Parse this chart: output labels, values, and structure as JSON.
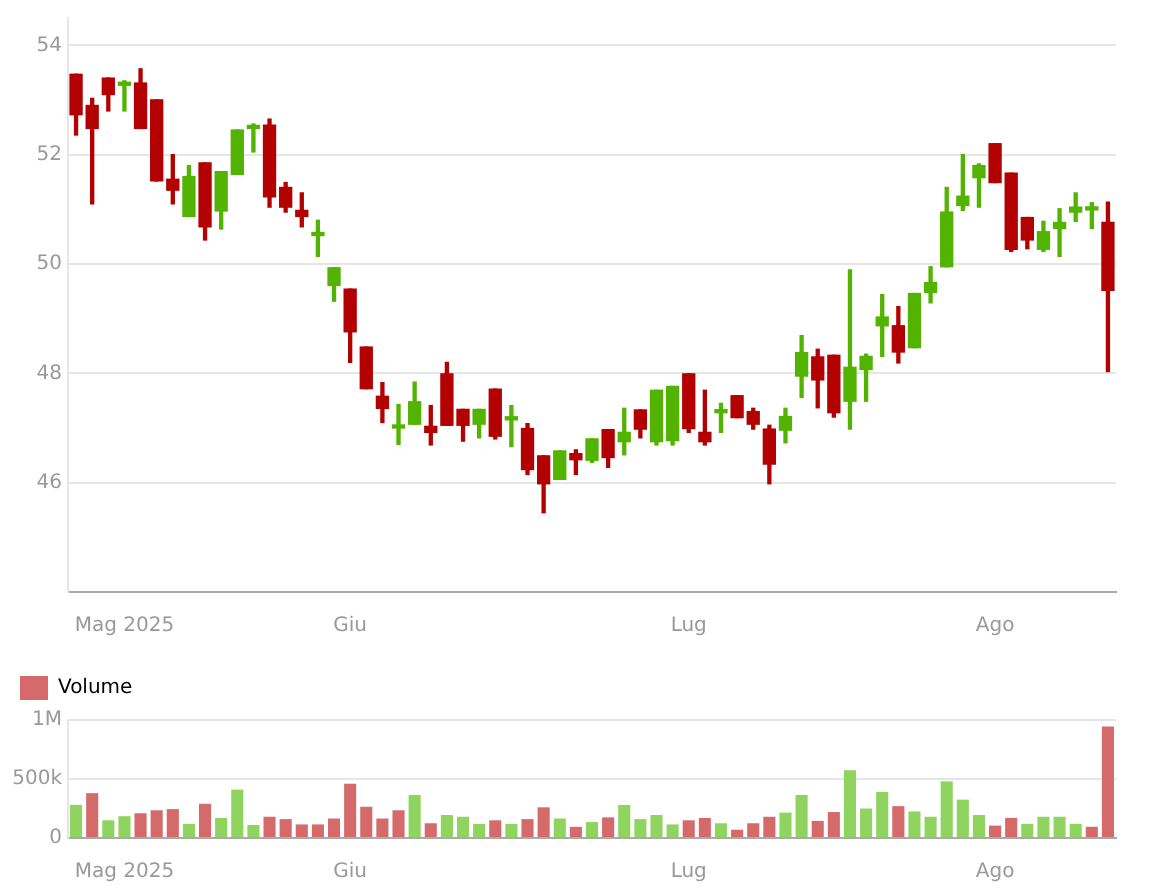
{
  "chart_data": [
    {
      "type": "candlestick",
      "categories": [
        null,
        null,
        null,
        "Mag 2025",
        null,
        null,
        null,
        null,
        null,
        null,
        null,
        null,
        null,
        null,
        null,
        null,
        null,
        "Giu",
        null,
        null,
        null,
        null,
        null,
        null,
        null,
        null,
        null,
        null,
        null,
        null,
        null,
        null,
        null,
        null,
        null,
        null,
        null,
        null,
        "Lug",
        null,
        null,
        null,
        null,
        null,
        null,
        null,
        null,
        null,
        null,
        null,
        null,
        null,
        null,
        null,
        null,
        null,
        null,
        "Ago",
        null,
        null,
        null,
        null,
        null,
        null,
        null
      ],
      "ohlc": [
        [
          53.47,
          53.47,
          52.36,
          52.73
        ],
        [
          52.9,
          53.03,
          51.1,
          52.48
        ],
        [
          53.4,
          53.4,
          52.8,
          53.1
        ],
        [
          53.27,
          53.35,
          52.8,
          53.32
        ],
        [
          53.31,
          53.57,
          52.48,
          52.48
        ],
        [
          53.0,
          53.0,
          51.52,
          51.52
        ],
        [
          51.55,
          52.0,
          51.1,
          51.35
        ],
        [
          50.87,
          51.8,
          50.87,
          51.6
        ],
        [
          51.85,
          51.85,
          50.44,
          50.68
        ],
        [
          50.97,
          51.69,
          50.64,
          51.69
        ],
        [
          51.64,
          52.45,
          51.64,
          52.45
        ],
        [
          52.48,
          52.56,
          52.05,
          52.52
        ],
        [
          52.54,
          52.65,
          51.04,
          51.23
        ],
        [
          51.4,
          51.49,
          50.95,
          51.04
        ],
        [
          50.98,
          51.3,
          50.68,
          50.87
        ],
        [
          50.52,
          50.8,
          50.14,
          50.55
        ],
        [
          49.61,
          49.93,
          49.32,
          49.93
        ],
        [
          49.54,
          49.54,
          48.2,
          48.76
        ],
        [
          48.48,
          48.48,
          47.72,
          47.72
        ],
        [
          47.58,
          47.83,
          47.1,
          47.36
        ],
        [
          47.0,
          47.43,
          46.7,
          47.02
        ],
        [
          47.07,
          47.84,
          47.07,
          47.48
        ],
        [
          47.03,
          47.41,
          46.69,
          46.92
        ],
        [
          47.99,
          48.2,
          47.05,
          47.05
        ],
        [
          47.34,
          47.34,
          46.76,
          47.05
        ],
        [
          47.07,
          47.34,
          46.82,
          47.34
        ],
        [
          47.71,
          47.71,
          46.8,
          46.85
        ],
        [
          47.15,
          47.41,
          46.66,
          47.18
        ],
        [
          46.99,
          47.08,
          46.15,
          46.24
        ],
        [
          46.49,
          46.49,
          45.45,
          45.98
        ],
        [
          46.06,
          46.58,
          46.06,
          46.58
        ],
        [
          46.53,
          46.6,
          46.15,
          46.42
        ],
        [
          46.41,
          46.8,
          46.37,
          46.8
        ],
        [
          46.97,
          46.97,
          46.28,
          46.46
        ],
        [
          46.75,
          47.36,
          46.51,
          46.92
        ],
        [
          47.33,
          47.33,
          46.82,
          46.98
        ],
        [
          46.75,
          47.69,
          46.69,
          47.69
        ],
        [
          46.77,
          47.76,
          46.69,
          47.76
        ],
        [
          47.99,
          47.99,
          46.92,
          46.99
        ],
        [
          46.92,
          47.69,
          46.69,
          46.75
        ],
        [
          47.28,
          47.45,
          46.92,
          47.31
        ],
        [
          47.59,
          47.59,
          47.19,
          47.19
        ],
        [
          47.3,
          47.36,
          46.98,
          47.07
        ],
        [
          46.98,
          47.05,
          45.98,
          46.34
        ],
        [
          46.96,
          47.36,
          46.73,
          47.21
        ],
        [
          47.95,
          48.69,
          47.56,
          48.38
        ],
        [
          48.3,
          48.44,
          47.37,
          47.88
        ],
        [
          48.33,
          48.33,
          47.2,
          47.28
        ],
        [
          47.49,
          49.89,
          46.98,
          48.11
        ],
        [
          48.07,
          48.35,
          47.49,
          48.31
        ],
        [
          48.87,
          49.44,
          48.31,
          49.03
        ],
        [
          48.87,
          49.22,
          48.19,
          48.39
        ],
        [
          48.47,
          49.46,
          48.47,
          49.46
        ],
        [
          49.48,
          49.95,
          49.29,
          49.66
        ],
        [
          49.95,
          51.4,
          49.95,
          50.95
        ],
        [
          51.07,
          52.0,
          50.98,
          51.24
        ],
        [
          51.58,
          51.83,
          51.04,
          51.8
        ],
        [
          52.2,
          52.2,
          51.49,
          51.49
        ],
        [
          51.66,
          51.66,
          50.23,
          50.27
        ],
        [
          50.85,
          50.85,
          50.28,
          50.44
        ],
        [
          50.27,
          50.78,
          50.23,
          50.59
        ],
        [
          50.65,
          51.01,
          50.14,
          50.76
        ],
        [
          50.95,
          51.3,
          50.78,
          51.04
        ],
        [
          50.99,
          51.12,
          50.65,
          51.01
        ],
        [
          50.76,
          51.13,
          48.03,
          49.52
        ]
      ],
      "colors": [
        "#b30000",
        "#b30000",
        "#b30000",
        "#52b300",
        "#b30000",
        "#b30000",
        "#b30000",
        "#52b300",
        "#b30000",
        "#52b300",
        "#52b300",
        "#52b300",
        "#b30000",
        "#b30000",
        "#b30000",
        "#52b300",
        "#52b300",
        "#b30000",
        "#b30000",
        "#b30000",
        "#52b300",
        "#52b300",
        "#b30000",
        "#b30000",
        "#b30000",
        "#52b300",
        "#b30000",
        "#52b300",
        "#b30000",
        "#b30000",
        "#52b300",
        "#b30000",
        "#52b300",
        "#b30000",
        "#52b300",
        "#b30000",
        "#52b300",
        "#52b300",
        "#b30000",
        "#b30000",
        "#52b300",
        "#b30000",
        "#b30000",
        "#b30000",
        "#52b300",
        "#52b300",
        "#b30000",
        "#b30000",
        "#52b300",
        "#52b300",
        "#52b300",
        "#b30000",
        "#52b300",
        "#52b300",
        "#52b300",
        "#52b300",
        "#52b300",
        "#b30000",
        "#b30000",
        "#b30000",
        "#52b300",
        "#52b300",
        "#52b300",
        "#52b300",
        "#b30000"
      ],
      "ylim": [
        44,
        54.5
      ],
      "yticks": [
        46,
        48,
        50,
        52,
        54
      ],
      "grid": "y"
    },
    {
      "type": "bar",
      "categories": [
        null,
        null,
        null,
        "Mag 2025",
        null,
        null,
        null,
        null,
        null,
        null,
        null,
        null,
        null,
        null,
        null,
        null,
        null,
        "Giu",
        null,
        null,
        null,
        null,
        null,
        null,
        null,
        null,
        null,
        null,
        null,
        null,
        null,
        null,
        null,
        null,
        null,
        null,
        null,
        null,
        "Lug",
        null,
        null,
        null,
        null,
        null,
        null,
        null,
        null,
        null,
        null,
        null,
        null,
        null,
        null,
        null,
        null,
        null,
        null,
        "Ago",
        null,
        null,
        null,
        null,
        null,
        null,
        null
      ],
      "series": [
        {
          "name": "Volume",
          "color": "#d46a6a",
          "values": [
            280000,
            380000,
            150000,
            185000,
            210000,
            235000,
            245000,
            120000,
            290000,
            170000,
            410000,
            110000,
            180000,
            160000,
            115000,
            115000,
            165000,
            460000,
            265000,
            165000,
            235000,
            365000,
            125000,
            195000,
            180000,
            120000,
            150000,
            120000,
            160000,
            260000,
            165000,
            95000,
            135000,
            175000,
            280000,
            160000,
            195000,
            115000,
            150000,
            170000,
            125000,
            70000,
            125000,
            180000,
            215000,
            365000,
            145000,
            220000,
            575000,
            250000,
            390000,
            270000,
            225000,
            180000,
            480000,
            325000,
            195000,
            105000,
            170000,
            120000,
            180000,
            180000,
            120000,
            95000,
            945000
          ],
          "colors": [
            "#8fd45f",
            "#d46a6a",
            "#8fd45f",
            "#8fd45f",
            "#d46a6a",
            "#d46a6a",
            "#d46a6a",
            "#8fd45f",
            "#d46a6a",
            "#8fd45f",
            "#8fd45f",
            "#8fd45f",
            "#d46a6a",
            "#d46a6a",
            "#d46a6a",
            "#d46a6a",
            "#d46a6a",
            "#d46a6a",
            "#d46a6a",
            "#d46a6a",
            "#d46a6a",
            "#8fd45f",
            "#d46a6a",
            "#8fd45f",
            "#8fd45f",
            "#8fd45f",
            "#d46a6a",
            "#8fd45f",
            "#d46a6a",
            "#d46a6a",
            "#8fd45f",
            "#d46a6a",
            "#8fd45f",
            "#d46a6a",
            "#8fd45f",
            "#8fd45f",
            "#8fd45f",
            "#8fd45f",
            "#d46a6a",
            "#d46a6a",
            "#8fd45f",
            "#d46a6a",
            "#d46a6a",
            "#d46a6a",
            "#8fd45f",
            "#8fd45f",
            "#d46a6a",
            "#d46a6a",
            "#8fd45f",
            "#8fd45f",
            "#8fd45f",
            "#d46a6a",
            "#8fd45f",
            "#8fd45f",
            "#8fd45f",
            "#8fd45f",
            "#8fd45f",
            "#d46a6a",
            "#d46a6a",
            "#8fd45f",
            "#8fd45f",
            "#8fd45f",
            "#8fd45f",
            "#d46a6a",
            "#d46a6a"
          ]
        }
      ],
      "ylim": [
        0,
        1000000
      ],
      "yticks": [
        0,
        {
          "value": 500000,
          "label": "500k"
        },
        {
          "value": 1000000,
          "label": "1M"
        }
      ],
      "grid": "y",
      "legend": "top left"
    }
  ]
}
